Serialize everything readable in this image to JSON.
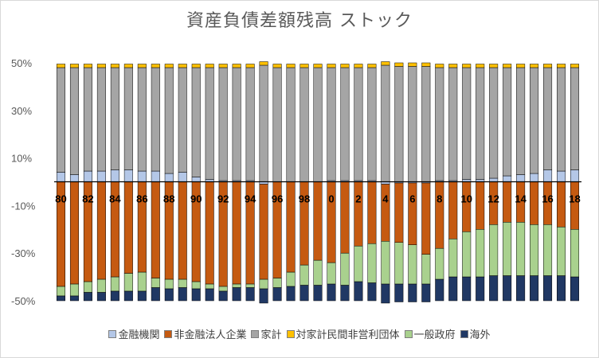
{
  "chart_data": {
    "type": "bar",
    "stacked": true,
    "title": "資産負債差額残高 ストック",
    "ylim": [
      -50,
      50
    ],
    "yticks": [
      "50%",
      "30%",
      "10%",
      "-10%",
      "-30%",
      "-50%"
    ],
    "ytick_values": [
      50,
      30,
      10,
      -10,
      -30,
      -50
    ],
    "categories": [
      "80",
      "81",
      "82",
      "83",
      "84",
      "85",
      "86",
      "87",
      "88",
      "89",
      "90",
      "91",
      "92",
      "93",
      "94",
      "95",
      "96",
      "97",
      "98",
      "99",
      "0",
      "1",
      "2",
      "3",
      "4",
      "5",
      "6",
      "7",
      "8",
      "9",
      "10",
      "11",
      "12",
      "13",
      "14",
      "15",
      "16",
      "17",
      "18"
    ],
    "x_tick_labels": [
      "80",
      "82",
      "84",
      "86",
      "88",
      "90",
      "92",
      "94",
      "96",
      "98",
      "0",
      "2",
      "4",
      "6",
      "8",
      "10",
      "12",
      "14",
      "16",
      "18"
    ],
    "series": [
      {
        "name": "金融機関",
        "color": "#b4c7e7",
        "values": [
          4,
          3,
          4.5,
          4.5,
          5,
          5,
          4.5,
          4.5,
          3.5,
          4,
          2,
          1,
          0.5,
          0.5,
          0.5,
          -1,
          0,
          0,
          0,
          0,
          0.5,
          0.5,
          0.5,
          0.5,
          -1,
          -0.5,
          -0.5,
          -0.5,
          0.5,
          0.5,
          1,
          1,
          1.5,
          2.5,
          3,
          3.5,
          5,
          4.5,
          5
        ]
      },
      {
        "name": "非金融法人企業",
        "color": "#c55a11",
        "values": [
          -44,
          -43,
          -42,
          -41,
          -40,
          -38.5,
          -38,
          -40.5,
          -41,
          -41,
          -42,
          -43,
          -44,
          -43,
          -43,
          -40,
          -40.5,
          -38,
          -35,
          -33,
          -34,
          -30,
          -27,
          -26,
          -24,
          -25,
          -26,
          -30,
          -28,
          -24,
          -21,
          -20,
          -18,
          -17,
          -17,
          -18,
          -18,
          -19,
          -20
        ]
      },
      {
        "name": "家計",
        "color": "#a5a5a5",
        "values": [
          44,
          45,
          43.5,
          43.5,
          43,
          43,
          43.5,
          43.5,
          44.5,
          44,
          46,
          47,
          47.5,
          47.5,
          47.5,
          49,
          48,
          48,
          48,
          48,
          47.5,
          47.5,
          47.5,
          47.5,
          49,
          48.5,
          48.5,
          48.5,
          47.5,
          47.5,
          47,
          47,
          46.5,
          45.5,
          45,
          44.5,
          43,
          43.5,
          43
        ]
      },
      {
        "name": "対家計民間非営利団体",
        "color": "#ffc000",
        "values": [
          1.5,
          1.5,
          1.5,
          1.5,
          1.5,
          1.5,
          1.5,
          1.5,
          1.5,
          1.5,
          1.5,
          1.5,
          1.5,
          1.5,
          1.5,
          1.5,
          1.5,
          1.5,
          1.5,
          1.5,
          1.5,
          1.5,
          1.5,
          1.5,
          1.5,
          1.5,
          1.5,
          1.5,
          1.5,
          1.5,
          1.5,
          1.5,
          1.5,
          1.5,
          1.5,
          1.5,
          1.5,
          1.5,
          1.5
        ]
      },
      {
        "name": "一般政府",
        "color": "#a9d18e",
        "values": [
          -4,
          -5,
          -4.5,
          -5.5,
          -6,
          -7.5,
          -8,
          -4,
          -4,
          -3.5,
          -3,
          -2,
          -2,
          -1.5,
          -1.5,
          -4,
          -4,
          -6,
          -8.5,
          -10.5,
          -9,
          -13.5,
          -15,
          -16.5,
          -18,
          -17.5,
          -16.5,
          -12.5,
          -13,
          -16,
          -19,
          -20,
          -21.5,
          -22.5,
          -22.5,
          -21.5,
          -21.5,
          -20.5,
          -20
        ]
      },
      {
        "name": "海外",
        "color": "#203864",
        "values": [
          -2,
          -2,
          -3.5,
          -3.5,
          -4,
          -4,
          -4,
          -5.5,
          -5,
          -5.5,
          -5,
          -5,
          -4,
          -5.5,
          -5.5,
          -6,
          -5.5,
          -6,
          -6.5,
          -6.5,
          -7,
          -6.5,
          -8,
          -7.5,
          -8,
          -7.5,
          -7.5,
          -7.5,
          -9,
          -10,
          -10,
          -10,
          -10.5,
          -10.5,
          -10.5,
          -10.5,
          -10.5,
          -10.5,
          -10
        ]
      }
    ]
  }
}
